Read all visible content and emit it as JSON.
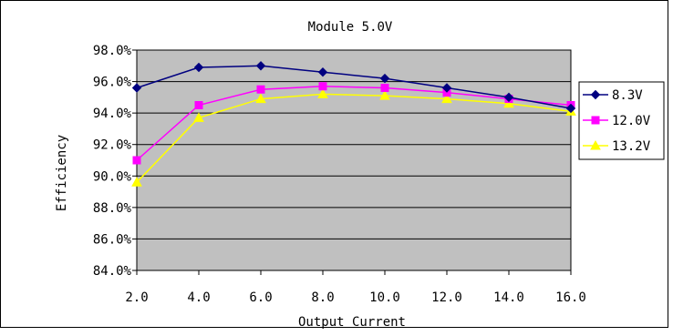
{
  "chart_data": {
    "type": "line",
    "title": "Module 5.0V",
    "xlabel": "Output Current",
    "ylabel": "Efficiency",
    "x": [
      2.0,
      4.0,
      6.0,
      8.0,
      10.0,
      12.0,
      14.0,
      16.0
    ],
    "x_tick_labels": [
      "2.0",
      "4.0",
      "6.0",
      "8.0",
      "10.0",
      "12.0",
      "14.0",
      "16.0"
    ],
    "ylim": [
      84.0,
      98.0
    ],
    "y_ticks": [
      84.0,
      86.0,
      88.0,
      90.0,
      92.0,
      94.0,
      96.0,
      98.0
    ],
    "y_tick_labels": [
      "84.0%",
      "86.0%",
      "88.0%",
      "90.0%",
      "92.0%",
      "94.0%",
      "96.0%",
      "98.0%"
    ],
    "grid": "horizontal",
    "plot_background": "#c0c0c0",
    "legend_position": "right",
    "series": [
      {
        "name": "8.3V",
        "color": "#000080",
        "marker": "diamond",
        "values": [
          95.6,
          96.9,
          97.0,
          96.6,
          96.2,
          95.6,
          95.0,
          94.3
        ]
      },
      {
        "name": "12.0V",
        "color": "#ff00ff",
        "marker": "square",
        "values": [
          91.0,
          94.5,
          95.5,
          95.7,
          95.6,
          95.3,
          94.9,
          94.5
        ]
      },
      {
        "name": "13.2V",
        "color": "#ffff00",
        "marker": "triangle",
        "values": [
          89.6,
          93.7,
          94.9,
          95.2,
          95.1,
          94.9,
          94.6,
          94.1
        ]
      }
    ]
  }
}
